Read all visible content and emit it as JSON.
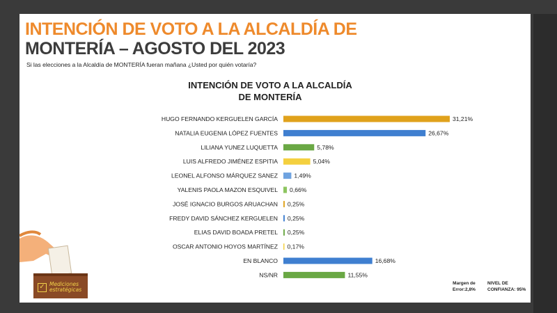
{
  "header": {
    "title_line1": "INTENCIÓN DE VOTO A LA ALCALDÍA DE",
    "title_line2": "MONTERÍA – AGOSTO DEL 2023",
    "question": "Si las elecciones a la  Alcaldía de MONTERÍA fueran mañana ¿Usted por quién votaría?"
  },
  "footer": {
    "margin_line1": "Margen de",
    "margin_line2": "Error:2,8%",
    "confidence_line1": "NIVEL DE",
    "confidence_line2": "CONFIANZA: 95%"
  },
  "logo": {
    "line1": "Mediciones",
    "line2": "estratégicas"
  },
  "colors": {
    "orange_title": "#ee8a2c",
    "gold": "#e0a21c",
    "blue": "#3f7fd0",
    "green": "#6aa844",
    "yellow": "#f4d03f",
    "light_blue": "#6fa3e0",
    "light_green": "#8dc560"
  },
  "chart_data": {
    "type": "bar",
    "orientation": "horizontal",
    "title_line1": "INTENCIÓN DE VOTO A LA ALCALDÍA",
    "title_line2": "DE MONTERÍA",
    "xlabel": "",
    "ylabel": "",
    "xlim": [
      0,
      35
    ],
    "categories": [
      "HUGO FERNANDO KERGUELEN GARCÍA",
      "NATALIA EUGENIA LÓPEZ FUENTES",
      "LILIANA YUNEZ LUQUETTA",
      "LUIS ALFREDO JIMÉNEZ ESPITIA",
      "LEONEL ALFONSO MÁRQUEZ SANEZ",
      "YALENIS PAOLA MAZON ESQUIVEL",
      "JOSÉ IGNACIO BURGOS ARUACHAN",
      "FREDY DAVID SÁNCHEZ KERGUELEN",
      "ELIAS DAVID BOADA PRETEL",
      "OSCAR ANTONIO HOYOS MARTÍNEZ",
      "EN BLANCO",
      "NS/NR"
    ],
    "values": [
      31.21,
      26.67,
      5.78,
      5.04,
      1.49,
      0.66,
      0.25,
      0.25,
      0.25,
      0.17,
      16.68,
      11.55
    ],
    "value_labels": [
      "31,21%",
      "26,67%",
      "5,78%",
      "5,04%",
      "1,49%",
      "0,66%",
      "0,25%",
      "0,25%",
      "0,25%",
      "0,17%",
      "16,68%",
      "11,55%"
    ],
    "bar_colors": [
      "#e0a21c",
      "#3f7fd0",
      "#6aa844",
      "#f4d03f",
      "#6fa3e0",
      "#8dc560",
      "#e0a21c",
      "#3f7fd0",
      "#6aa844",
      "#f4d03f",
      "#3f7fd0",
      "#6aa844"
    ]
  }
}
